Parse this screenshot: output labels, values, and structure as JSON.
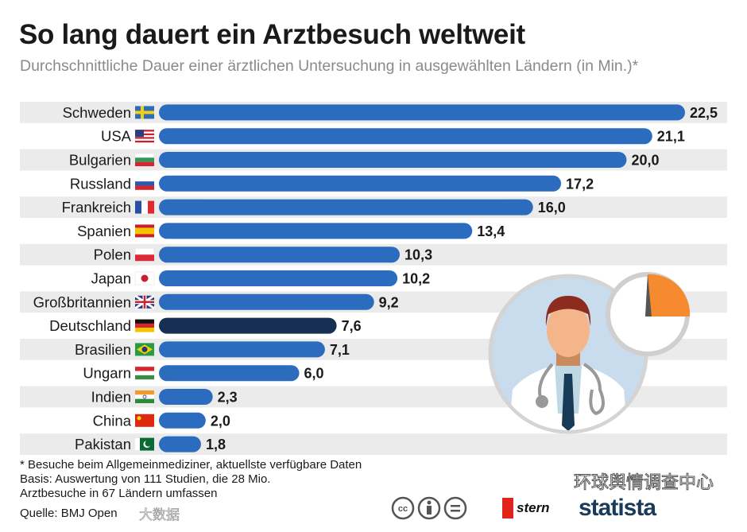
{
  "chart_data": {
    "type": "bar",
    "title": "So lang dauert ein Arztbesuch weltweit",
    "subtitle": "Durchschnittliche Dauer einer ärztlichen Untersuchung in ausgewählten Ländern (in Min.)*",
    "categories": [
      "Schweden",
      "USA",
      "Bulgarien",
      "Russland",
      "Frankreich",
      "Spanien",
      "Polen",
      "Japan",
      "Großbritannien",
      "Deutschland",
      "Brasilien",
      "Ungarn",
      "Indien",
      "China",
      "Pakistan"
    ],
    "values": [
      22.5,
      21.1,
      20.0,
      17.2,
      16.0,
      13.4,
      10.3,
      10.2,
      9.2,
      7.6,
      7.1,
      6.0,
      2.3,
      2.0,
      1.8
    ],
    "value_labels": [
      "22,5",
      "21,1",
      "20,0",
      "17,2",
      "16,0",
      "13,4",
      "10,3",
      "10,2",
      "9,2",
      "7,6",
      "7,1",
      "6,0",
      "2,3",
      "2,0",
      "1,8"
    ],
    "highlight": "Deutschland",
    "xlim": [
      0,
      22.5
    ],
    "colors": {
      "bar": "#2b6cbf",
      "highlight": "#172f52",
      "stripe": "#ebebeb"
    },
    "flags": {
      "Schweden": "flag-sweden",
      "USA": "flag-usa",
      "Bulgarien": "flag-bulgaria",
      "Russland": "flag-russia",
      "Frankreich": "flag-france",
      "Spanien": "flag-spain",
      "Polen": "flag-poland",
      "Japan": "flag-japan",
      "Großbritannien": "flag-uk",
      "Deutschland": "flag-germany",
      "Brasilien": "flag-brazil",
      "Ungarn": "flag-hungary",
      "Indien": "flag-india",
      "China": "flag-china",
      "Pakistan": "flag-pakistan"
    }
  },
  "footer": {
    "note": "* Besuche beim Allgemeinmediziner, aktuellste verfügbare Daten",
    "basis1": "Basis: Auswertung von 111 Studien, die 28 Mio.",
    "basis2": "Arztbesuche in 67 Ländern umfassen",
    "source": "Quelle: BMJ Open"
  },
  "logos": {
    "stern": "stern",
    "statista": "statista",
    "watermark": "环球舆情调查中心",
    "watermark2": "大数据"
  }
}
